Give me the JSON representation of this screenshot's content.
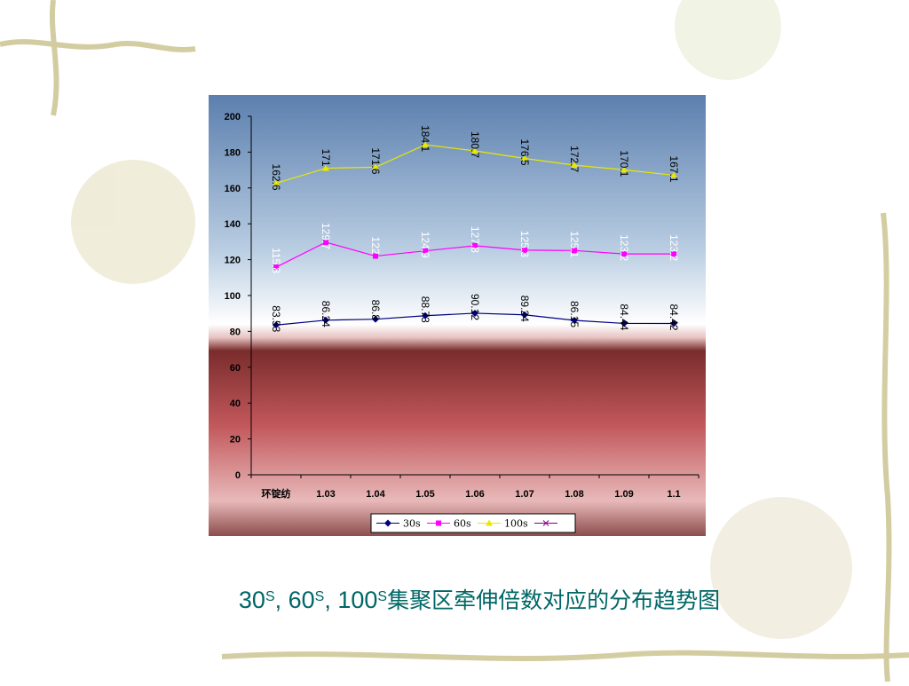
{
  "chart_data": {
    "type": "line",
    "title": [
      {
        "text": "30"
      },
      {
        "text": "S",
        "sup": true
      },
      {
        "text": ", 60"
      },
      {
        "text": "S",
        "sup": true
      },
      {
        "text": ", 100"
      },
      {
        "text": "S",
        "sup": true
      },
      {
        "text": "集聚区牵伸倍数对应的分布趋势图"
      }
    ],
    "categories": [
      "环锭纺",
      "1.03",
      "1.04",
      "1.05",
      "1.06",
      "1.07",
      "1.08",
      "1.09",
      "1.1"
    ],
    "series": [
      {
        "name": "30s",
        "color": "#000080",
        "marker": "diamond",
        "label_color": "#000000",
        "values": [
          83.53,
          86.24,
          86.8,
          88.73,
          90.12,
          89.24,
          86.15,
          84.44,
          84.42
        ]
      },
      {
        "name": "60s",
        "color": "#ff00ff",
        "marker": "square",
        "label_color": "#ffffff",
        "values": [
          115.8,
          129.7,
          122,
          124.9,
          127.8,
          125.3,
          125.1,
          123.2,
          123.2
        ]
      },
      {
        "name": "100s",
        "color": "#e8e800",
        "marker": "triangle",
        "label_color": "#000000",
        "values": [
          162.6,
          171,
          171.6,
          184.1,
          180.7,
          176.5,
          172.7,
          170.1,
          167.1
        ]
      }
    ],
    "ylim": [
      0,
      200
    ],
    "yticks": [
      0,
      20,
      40,
      60,
      80,
      100,
      120,
      140,
      160,
      180,
      200
    ],
    "legend": "bottom"
  }
}
